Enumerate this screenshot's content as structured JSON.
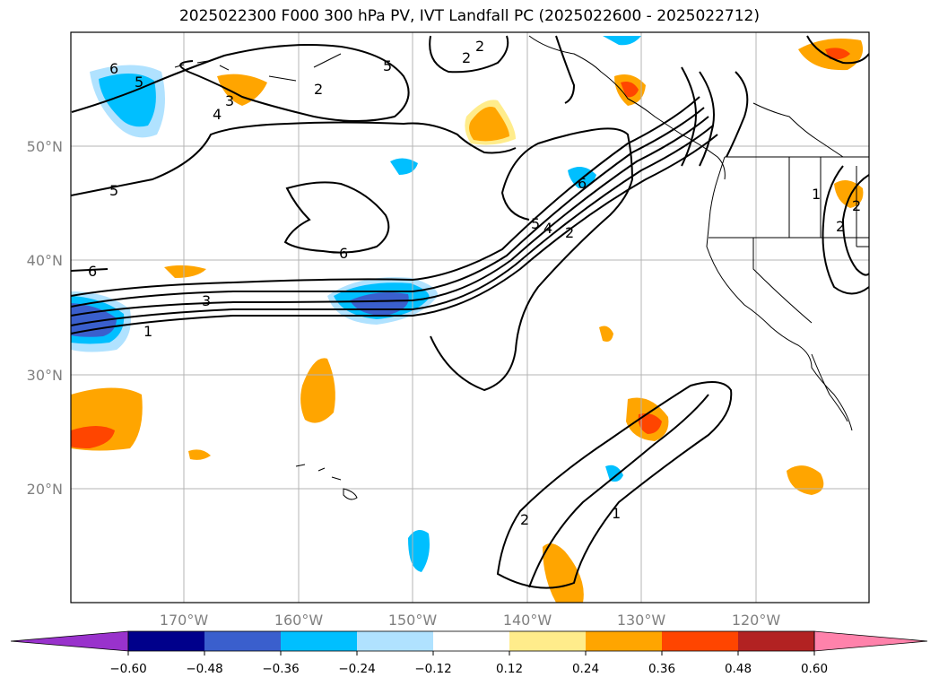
{
  "title": "2025022300 F000 300 hPa PV, IVT Landfall PC (2025022600 - 2025022712)",
  "lon_ticks": [
    "170°W",
    "160°W",
    "150°W",
    "140°W",
    "130°W",
    "120°W"
  ],
  "lat_ticks": [
    "50°N",
    "40°N",
    "30°N",
    "20°N"
  ],
  "colorbar": {
    "ticks": [
      "-0.60",
      "-0.48",
      "-0.36",
      "-0.24",
      "-0.12",
      "0.12",
      "0.24",
      "0.36",
      "0.48",
      "0.60"
    ],
    "colors": [
      "#9932cc",
      "#00008b",
      "#3a5fcd",
      "#00bfff",
      "#b0e2ff",
      "#ffffff",
      "#ffec8b",
      "#ffa500",
      "#ff4500",
      "#b22222",
      "#ff82ab"
    ]
  },
  "contour_labels": [
    "6",
    "5",
    "2",
    "3",
    "4",
    "2",
    "5",
    "5",
    "6",
    "3",
    "1",
    "6",
    "2",
    "5",
    "4",
    "2",
    "6",
    "1",
    "2",
    "2",
    "1",
    "2"
  ]
}
